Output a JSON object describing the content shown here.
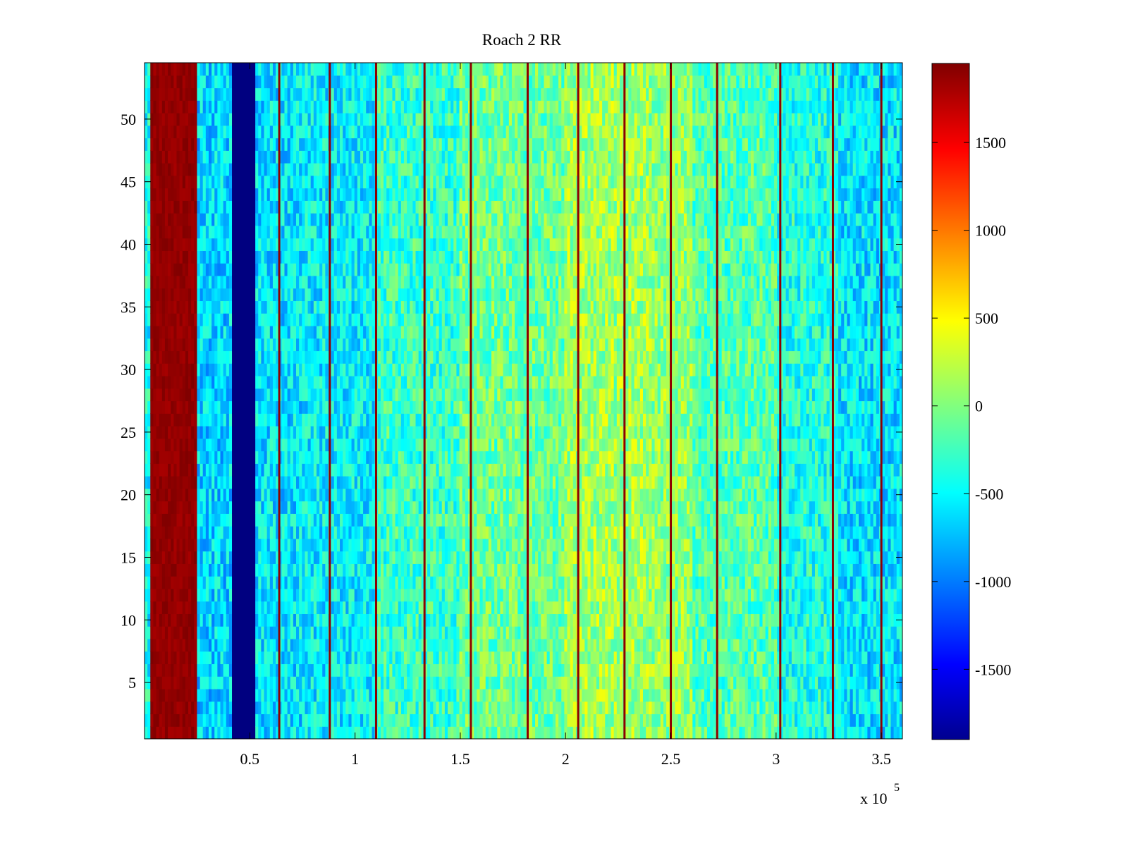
{
  "chart_data": {
    "type": "heatmap",
    "title": "Roach 2 RR",
    "xlabel": "",
    "ylabel": "",
    "xlim": [
      0,
      360000
    ],
    "ylim": [
      0.5,
      54.5
    ],
    "x_ticks": [
      50000,
      100000,
      150000,
      200000,
      250000,
      300000,
      350000
    ],
    "x_tick_labels": [
      "0.5",
      "1",
      "1.5",
      "2",
      "2.5",
      "3",
      "3.5"
    ],
    "x_exponent_label": "x 10",
    "x_exponent_power": "5",
    "y_ticks": [
      5,
      10,
      15,
      20,
      25,
      30,
      35,
      40,
      45,
      50
    ],
    "y_tick_labels": [
      "5",
      "10",
      "15",
      "20",
      "25",
      "30",
      "35",
      "40",
      "45",
      "50"
    ],
    "rows": 54,
    "colormap": "jet",
    "clim": [
      -1900,
      1950
    ],
    "colorbar": {
      "ticks": [
        -1500,
        -1000,
        -500,
        0,
        500,
        1000,
        1500
      ],
      "tick_labels": [
        "-1500",
        "-1000",
        "-500",
        "0",
        "500",
        "1000",
        "1500"
      ]
    },
    "column_bands": [
      {
        "x_start": 0,
        "x_end": 3000,
        "value": -400
      },
      {
        "x_start": 3000,
        "x_end": 25000,
        "value": 1950
      },
      {
        "x_start": 25000,
        "x_end": 41000,
        "value": -600
      },
      {
        "x_start": 41000,
        "x_end": 53000,
        "value": -1900
      },
      {
        "x_start": 53000,
        "x_end": 75000,
        "value": -550
      },
      {
        "x_start": 75000,
        "x_end": 110000,
        "value": -500
      },
      {
        "x_start": 110000,
        "x_end": 150000,
        "value": -250
      },
      {
        "x_start": 150000,
        "x_end": 200000,
        "value": -50
      },
      {
        "x_start": 200000,
        "x_end": 240000,
        "value": 150
      },
      {
        "x_start": 240000,
        "x_end": 260000,
        "value": 100
      },
      {
        "x_start": 260000,
        "x_end": 300000,
        "value": -150
      },
      {
        "x_start": 300000,
        "x_end": 330000,
        "value": -350
      },
      {
        "x_start": 330000,
        "x_end": 360000,
        "value": -550
      }
    ],
    "spike_columns_x": [
      64000,
      88000,
      110000,
      133000,
      155000,
      182000,
      206000,
      228000,
      250000,
      272000,
      302000,
      327000,
      350000
    ],
    "spike_value": 1900
  }
}
